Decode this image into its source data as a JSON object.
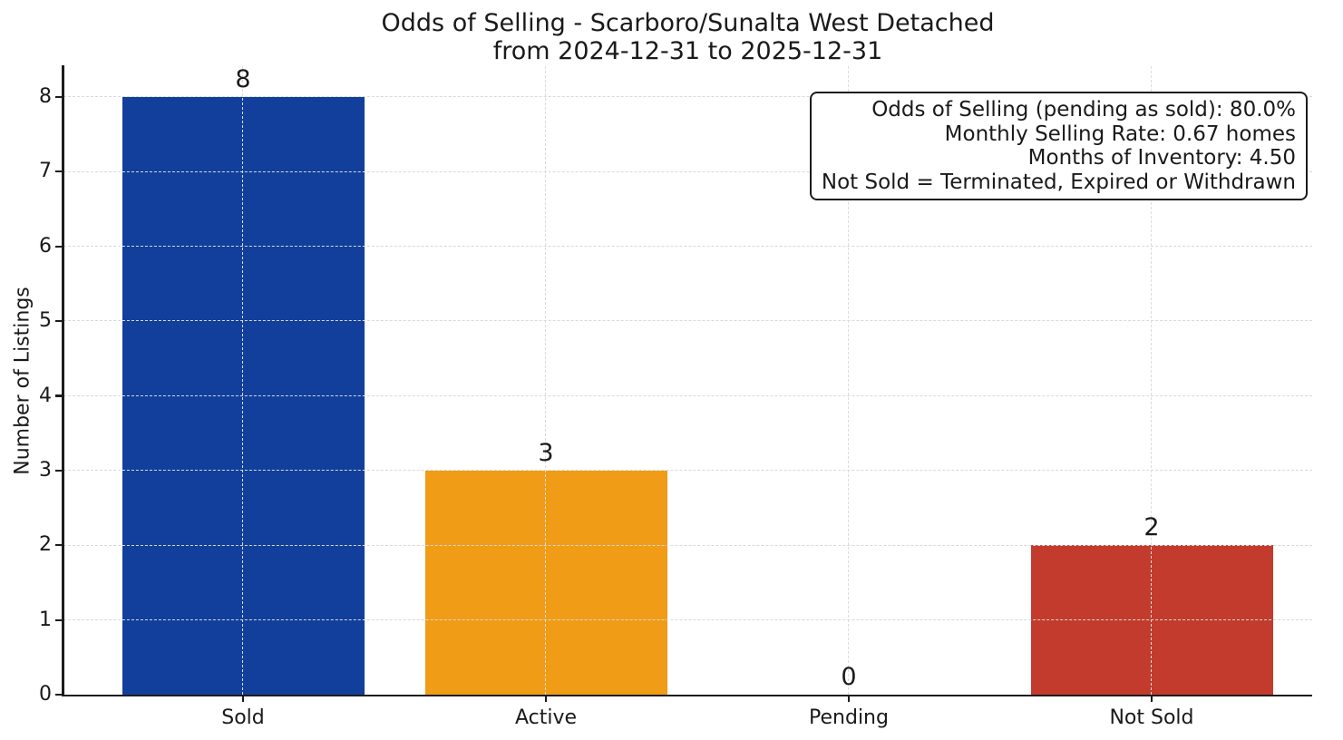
{
  "chart_data": {
    "type": "bar",
    "title": "Odds of Selling - Scarboro/Sunalta West Detached",
    "subtitle": "from 2024-12-31 to 2025-12-31",
    "ylabel": "Number of Listings",
    "xlabel": "",
    "categories": [
      "Sold",
      "Active",
      "Pending",
      "Not Sold"
    ],
    "values": [
      8,
      3,
      0,
      2
    ],
    "bar_colors": [
      "#113f9b",
      "#f09c16",
      null,
      "#c33b2c"
    ],
    "value_labels": [
      "8",
      "3",
      "0",
      "2"
    ],
    "ylim": [
      0,
      8.4
    ],
    "yticks": [
      0,
      1,
      2,
      3,
      4,
      5,
      6,
      7,
      8
    ],
    "grid": true,
    "grid_style": "dashed",
    "legend_position": "none",
    "annotation": {
      "position": "top-right",
      "lines": [
        "Odds of Selling (pending as sold): 80.0%",
        "Monthly Selling Rate: 0.67 homes",
        "Months of Inventory: 4.50",
        "Not Sold = Terminated, Expired or Withdrawn"
      ]
    },
    "colors": {
      "axis": "#1c1c1c",
      "grid": "#d9d9d9",
      "text": "#1a1a1a",
      "background": "#ffffff"
    }
  }
}
